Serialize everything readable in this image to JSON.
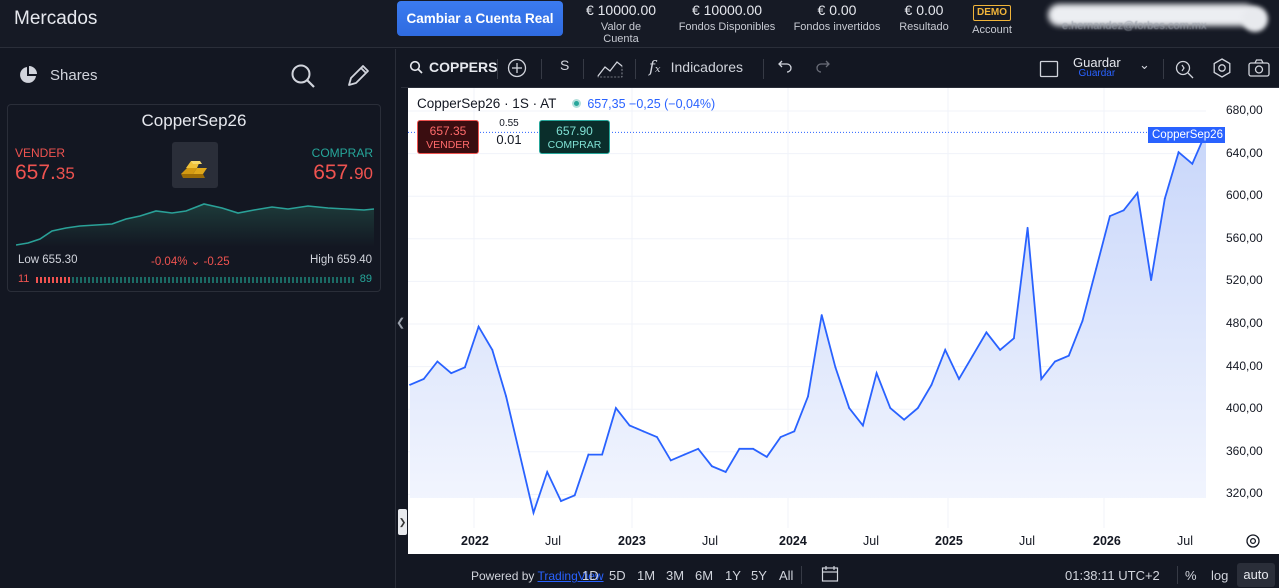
{
  "app": {
    "title": "Mercados"
  },
  "topbar": {
    "real_button": "Cambiar a Cuenta Real",
    "stats": [
      {
        "value": "€ 10000.00",
        "label": "Valor de Cuenta"
      },
      {
        "value": "€ 10000.00",
        "label": "Fondos Disponibles"
      },
      {
        "value": "€ 0.00",
        "label": "Fondos invertidos"
      },
      {
        "value": "€ 0.00",
        "label": "Resultado"
      }
    ],
    "demo_badge": "DEMO",
    "account_label": "Account",
    "user_email": "e.hernandez@forbes.com.mx"
  },
  "left": {
    "shares_label": "Shares",
    "card": {
      "title": "CopperSep26",
      "sell_label": "VENDER",
      "sell_main": "657.",
      "sell_small": "35",
      "buy_label": "COMPRAR",
      "buy_main": "657.",
      "buy_small": "90",
      "low": "Low 655.30",
      "change": "-0.04%",
      "change_abs": "-0.25",
      "high": "High 659.40",
      "sell_pct": "11",
      "buy_pct": "89",
      "sell_ratio": 0.11
    }
  },
  "toolbar": {
    "symbol": "COPPERS",
    "interval": "S",
    "indicators": "Indicadores",
    "save": "Guardar",
    "save_sub": "Guardar"
  },
  "chart": {
    "legend_symbol": "CopperSep26 · 1S · AT",
    "legend_quote": "657,35  −0,25 (−0,04%)",
    "sell_price": "657.35",
    "sell_label": "VENDER",
    "buy_price": "657.90",
    "buy_label": "COMPRAR",
    "spread": "0.55",
    "quantity": "0.01",
    "price_tag": "CopperSep26",
    "y_ticks": [
      "680,00",
      "640,00",
      "600,00",
      "560,00",
      "520,00",
      "480,00",
      "440,00",
      "400,00",
      "360,00",
      "320,00"
    ],
    "x_ticks": [
      {
        "label": "2022",
        "year": true
      },
      {
        "label": "Jul",
        "year": false
      },
      {
        "label": "2023",
        "year": true
      },
      {
        "label": "Jul",
        "year": false
      },
      {
        "label": "2024",
        "year": true
      },
      {
        "label": "Jul",
        "year": false
      },
      {
        "label": "2025",
        "year": true
      },
      {
        "label": "Jul",
        "year": false
      },
      {
        "label": "2026",
        "year": true
      },
      {
        "label": "Jul",
        "year": false
      }
    ]
  },
  "chart_data": {
    "type": "area",
    "x": [
      "2021-10",
      "2021-11",
      "2021-12",
      "2022-01",
      "2022-02",
      "2022-03",
      "2022-04",
      "2022-05",
      "2022-06",
      "2022-07",
      "2022-08",
      "2022-09",
      "2022-10",
      "2022-11",
      "2022-12",
      "2023-01",
      "2023-02",
      "2023-03",
      "2023-04",
      "2023-05",
      "2023-06",
      "2023-07",
      "2023-08",
      "2023-09",
      "2023-10",
      "2023-11",
      "2023-12",
      "2024-01",
      "2024-02",
      "2024-03",
      "2024-04",
      "2024-05",
      "2024-06",
      "2024-07",
      "2024-08",
      "2024-09",
      "2024-10",
      "2024-11",
      "2024-12",
      "2025-01",
      "2025-02",
      "2025-03",
      "2025-04",
      "2025-05",
      "2025-06",
      "2025-07",
      "2025-08",
      "2025-09",
      "2025-10",
      "2025-11",
      "2025-12",
      "2026-01",
      "2026-02",
      "2026-03",
      "2026-04",
      "2026-05",
      "2026-06",
      "2026-07",
      "2026-08"
    ],
    "series": [
      {
        "values": [
          440,
          445,
          460,
          450,
          455,
          490,
          470,
          430,
          380,
          330,
          365,
          340,
          345,
          380,
          380,
          420,
          405,
          400,
          395,
          375,
          380,
          385,
          370,
          365,
          385,
          385,
          378,
          395,
          400,
          430,
          500,
          455,
          420,
          405,
          450,
          420,
          410,
          420,
          440,
          470,
          445,
          465,
          485,
          470,
          480,
          575,
          445,
          460,
          465,
          495,
          540,
          585,
          590,
          605,
          530,
          600,
          640,
          630,
          657
        ]
      }
    ],
    "y_range": [
      310,
      690
    ],
    "title": "",
    "xlabel": "",
    "ylabel": ""
  },
  "bottom": {
    "powered_by": "Powered by",
    "powered_link": "TradingView",
    "ranges": [
      "1D",
      "5D",
      "1M",
      "3M",
      "6M",
      "1Y",
      "5Y",
      "All"
    ],
    "time": "01:38:11 UTC+2",
    "percent": "%",
    "log": "log",
    "auto": "auto"
  }
}
